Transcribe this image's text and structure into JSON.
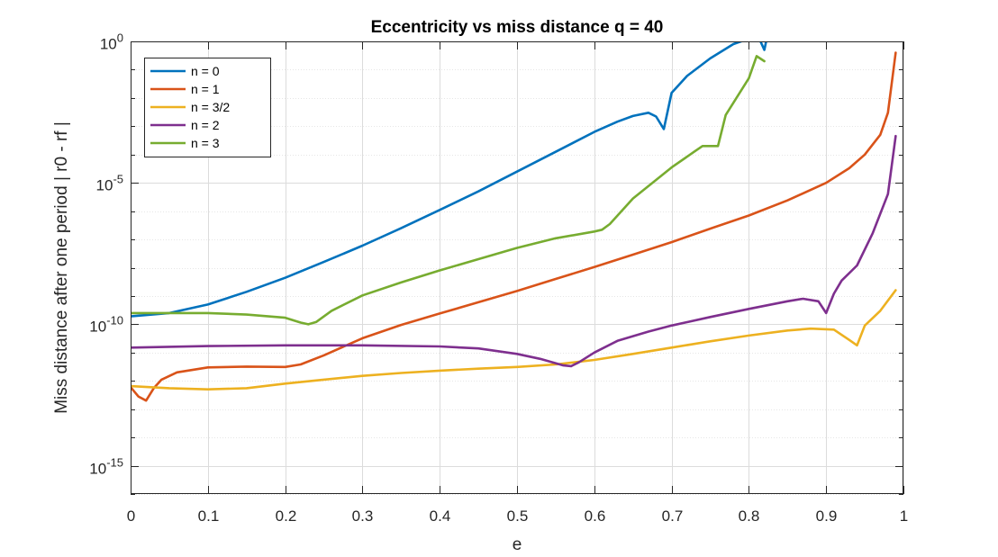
{
  "chart_data": {
    "type": "line",
    "title": "Eccentricity vs miss distance q = 40",
    "xlabel": "e",
    "ylabel": "Miss distance after one period | r0 - rf |",
    "xlim": [
      0,
      1
    ],
    "ylim": [
      1e-16,
      1
    ],
    "yscale": "log",
    "grid": true,
    "minor_grid": true,
    "legend_position": "top-left",
    "x_ticks": [
      0,
      0.1,
      0.2,
      0.3,
      0.4,
      0.5,
      0.6,
      0.7,
      0.8,
      0.9,
      1
    ],
    "x_tick_labels": [
      "0",
      "0.1",
      "0.2",
      "0.3",
      "0.4",
      "0.5",
      "0.6",
      "0.7",
      "0.8",
      "0.9",
      "1"
    ],
    "y_ticks": [
      {
        "value": 1e-15,
        "base": "10",
        "exp": "-15"
      },
      {
        "value": 1e-10,
        "base": "10",
        "exp": "-10"
      },
      {
        "value": 1e-05,
        "base": "10",
        "exp": "-5"
      },
      {
        "value": 1,
        "base": "10",
        "exp": "0"
      }
    ],
    "series": [
      {
        "name": "n = 0",
        "color": "#0072BD",
        "x": [
          0,
          0.05,
          0.1,
          0.15,
          0.2,
          0.25,
          0.3,
          0.35,
          0.4,
          0.45,
          0.5,
          0.55,
          0.6,
          0.63,
          0.65,
          0.67,
          0.68,
          0.69,
          0.7,
          0.72,
          0.75,
          0.78,
          0.79,
          0.8,
          0.81,
          0.815,
          0.82,
          0.823
        ],
        "y": [
          1.9e-10,
          2.5e-10,
          5e-10,
          1.4e-09,
          4.4e-09,
          1.6e-08,
          6e-08,
          2.5e-07,
          1.1e-06,
          5e-06,
          2.5e-05,
          0.000125,
          0.00063,
          0.00145,
          0.0023,
          0.003,
          0.0022,
          0.0008,
          0.015,
          0.06,
          0.25,
          0.8,
          1,
          1.2,
          1.15,
          1.0,
          0.5,
          1.2
        ]
      },
      {
        "name": "n = 1",
        "color": "#D95319",
        "x": [
          0,
          0.01,
          0.02,
          0.03,
          0.04,
          0.06,
          0.1,
          0.15,
          0.2,
          0.22,
          0.25,
          0.3,
          0.35,
          0.4,
          0.45,
          0.5,
          0.55,
          0.6,
          0.65,
          0.7,
          0.75,
          0.8,
          0.85,
          0.9,
          0.93,
          0.95,
          0.97,
          0.98,
          0.99
        ],
        "y": [
          6e-13,
          2.8e-13,
          2e-13,
          5.5e-13,
          1.1e-12,
          2e-12,
          3e-12,
          3.2e-12,
          3.1e-12,
          3.8e-12,
          8e-12,
          3.2e-11,
          9.5e-11,
          2.4e-10,
          6e-10,
          1.5e-09,
          4e-09,
          1.05e-08,
          2.9e-08,
          8e-08,
          2.4e-07,
          7e-07,
          2.4e-06,
          1e-05,
          3.3e-05,
          0.0001,
          0.0005,
          0.003,
          0.4
        ]
      },
      {
        "name": "n = 3/2",
        "color": "#EDB120",
        "x": [
          0,
          0.05,
          0.1,
          0.15,
          0.2,
          0.25,
          0.3,
          0.35,
          0.4,
          0.45,
          0.5,
          0.55,
          0.6,
          0.65,
          0.7,
          0.75,
          0.8,
          0.85,
          0.88,
          0.91,
          0.93,
          0.94,
          0.95,
          0.97,
          0.99
        ],
        "y": [
          6.5e-13,
          5.5e-13,
          5e-13,
          5.5e-13,
          8e-13,
          1.1e-12,
          1.5e-12,
          1.9e-12,
          2.3e-12,
          2.7e-12,
          3.1e-12,
          3.8e-12,
          5.5e-12,
          9e-12,
          1.5e-11,
          2.5e-11,
          4e-11,
          6e-11,
          7e-11,
          6.5e-11,
          2.8e-11,
          1.8e-11,
          9e-11,
          3e-10,
          1.6e-09
        ]
      },
      {
        "name": "n = 2",
        "color": "#7E2F8E",
        "x": [
          0,
          0.1,
          0.2,
          0.3,
          0.4,
          0.45,
          0.5,
          0.53,
          0.56,
          0.57,
          0.58,
          0.6,
          0.63,
          0.67,
          0.7,
          0.75,
          0.8,
          0.85,
          0.87,
          0.89,
          0.9,
          0.91,
          0.92,
          0.94,
          0.96,
          0.98,
          0.99
        ],
        "y": [
          1.5e-11,
          1.7e-11,
          1.8e-11,
          1.8e-11,
          1.65e-11,
          1.4e-11,
          9e-12,
          6e-12,
          3.5e-12,
          3.3e-12,
          4.5e-12,
          1e-11,
          2.6e-11,
          5.5e-11,
          9e-11,
          1.8e-10,
          3.5e-10,
          6.5e-10,
          8e-10,
          6.5e-10,
          2.5e-10,
          1.2e-09,
          3.5e-09,
          1.2e-08,
          1.6e-07,
          4e-06,
          0.00045
        ]
      },
      {
        "name": "n = 3",
        "color": "#77AC30",
        "x": [
          0,
          0.05,
          0.1,
          0.15,
          0.2,
          0.22,
          0.23,
          0.24,
          0.26,
          0.3,
          0.35,
          0.4,
          0.45,
          0.5,
          0.55,
          0.6,
          0.61,
          0.62,
          0.65,
          0.7,
          0.73,
          0.74,
          0.76,
          0.77,
          0.8,
          0.81,
          0.82
        ],
        "y": [
          2.5e-10,
          2.5e-10,
          2.5e-10,
          2.2e-10,
          1.7e-10,
          1.15e-10,
          1e-10,
          1.2e-10,
          3e-10,
          1.05e-09,
          3e-09,
          8e-09,
          2e-08,
          5e-08,
          1.1e-07,
          1.9e-07,
          2.2e-07,
          3.5e-07,
          2.8e-06,
          3.5e-05,
          0.00013,
          0.0002,
          0.0002,
          0.0025,
          0.05,
          0.3,
          0.2
        ]
      }
    ]
  }
}
